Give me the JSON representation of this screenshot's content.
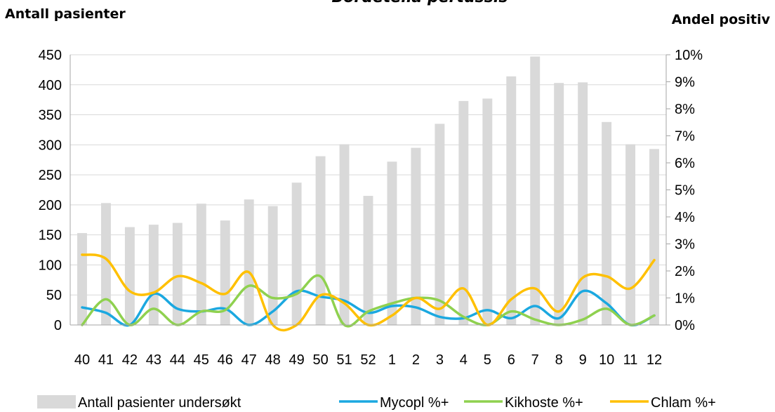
{
  "chart_data": {
    "type": "bar",
    "title": "Bordetella pertussis",
    "ylabel_left": "Antall pasienter",
    "ylabel_right": "Andel positiv",
    "categories": [
      "40",
      "41",
      "42",
      "43",
      "44",
      "45",
      "46",
      "47",
      "48",
      "49",
      "50",
      "51",
      "52",
      "1",
      "2",
      "3",
      "4",
      "5",
      "6",
      "7",
      "8",
      "9",
      "10",
      "11",
      "12"
    ],
    "ylim_left": [
      0,
      450
    ],
    "yticks_left": [
      0,
      50,
      100,
      150,
      200,
      250,
      300,
      350,
      400,
      450
    ],
    "ylim_right": [
      0,
      0.1
    ],
    "yticks_right": [
      "0%",
      "1%",
      "2%",
      "3%",
      "4%",
      "5%",
      "6%",
      "7%",
      "8%",
      "9%",
      "10%"
    ],
    "grid": true,
    "legend_position": "bottom",
    "series": [
      {
        "name": "Antall pasienter undersøkt",
        "kind": "bar",
        "axis": "left",
        "color": "#d9d9d9",
        "values": [
          153,
          203,
          163,
          167,
          170,
          202,
          174,
          209,
          198,
          237,
          281,
          301,
          215,
          272,
          295,
          335,
          373,
          377,
          414,
          447,
          403,
          404,
          338,
          301,
          293
        ]
      },
      {
        "name": "Mycopl %+",
        "kind": "line",
        "axis": "right",
        "color": "#1ba8e0",
        "values": [
          0.0065,
          0.0045,
          0.0,
          0.0115,
          0.006,
          0.005,
          0.006,
          0.0,
          0.005,
          0.0125,
          0.0105,
          0.009,
          0.0045,
          0.007,
          0.0065,
          0.003,
          0.0025,
          0.0055,
          0.0025,
          0.007,
          0.0025,
          0.0125,
          0.008,
          0.0,
          0.0035
        ]
      },
      {
        "name": "Kikhoste %+",
        "kind": "line",
        "axis": "right",
        "color": "#8fd14f",
        "values": [
          0.0,
          0.0095,
          0.0,
          0.006,
          0.0,
          0.005,
          0.0055,
          0.0145,
          0.01,
          0.0115,
          0.018,
          0.0,
          0.005,
          0.008,
          0.01,
          0.009,
          0.003,
          0.0,
          0.005,
          0.002,
          0.0,
          0.002,
          0.006,
          0.0,
          0.0035
        ]
      },
      {
        "name": "Chlam %+",
        "kind": "line",
        "axis": "right",
        "color": "#ffc000",
        "values": [
          0.026,
          0.0245,
          0.0125,
          0.012,
          0.018,
          0.0155,
          0.0115,
          0.0195,
          0.0,
          0.0,
          0.011,
          0.008,
          0.0,
          0.0035,
          0.01,
          0.006,
          0.0135,
          0.0,
          0.0095,
          0.0135,
          0.005,
          0.0175,
          0.018,
          0.0135,
          0.024
        ]
      }
    ]
  }
}
